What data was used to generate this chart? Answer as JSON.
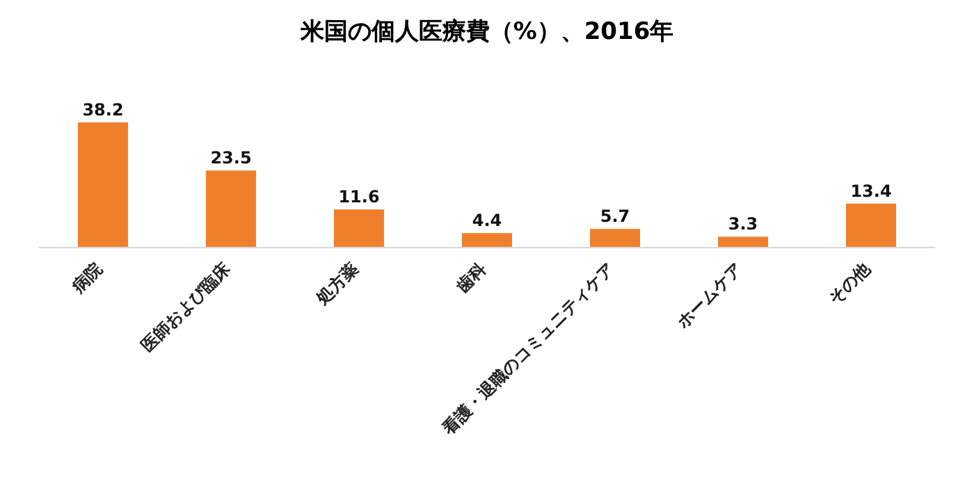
{
  "chart_data": {
    "type": "bar",
    "title": "米国の個人医療費（%）、2016年",
    "categories": [
      "病院",
      "医師および臨床",
      "処方薬",
      "歯科",
      "看護・退職のコミュニティケア",
      "ホームケア",
      "その他"
    ],
    "values": [
      38.2,
      23.5,
      11.6,
      4.4,
      5.7,
      3.3,
      13.4
    ],
    "color": "#f07f2c",
    "data_labels": true,
    "grid": false,
    "legend": false
  }
}
